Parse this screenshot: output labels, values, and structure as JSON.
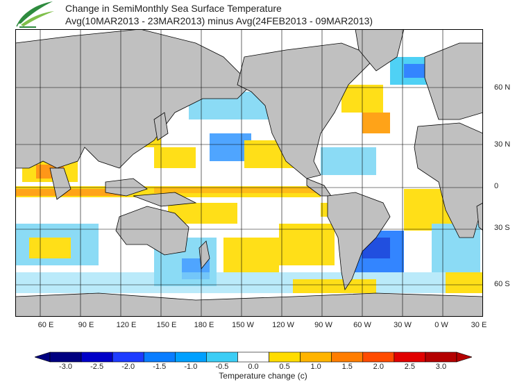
{
  "header": {
    "title_line1": "Change in SemiMonthly Sea Surface Temperature",
    "title_line2": "Avg(10MAR2013 - 23MAR2013) minus Avg(24FEB2013 - 09MAR2013)"
  },
  "logo": {
    "icon": "leaf-logo-icon",
    "colors": [
      "#2e8b3e",
      "#7fbf4a"
    ]
  },
  "map": {
    "land_color": "#c0c0c0",
    "ocean_color": "#ffffff",
    "lon_labels": [
      "60 E",
      "90 E",
      "120 E",
      "150 E",
      "180 E",
      "150 W",
      "120 W",
      "90 W",
      "60 W",
      "30 W",
      "0 W",
      "30 E"
    ],
    "lat_labels": [
      "60 N",
      "30 N",
      "0",
      "30 S",
      "60 S"
    ]
  },
  "colorbar": {
    "title": "Temperature change  (c)",
    "tick_labels": [
      "-3.0",
      "-2.5",
      "-2.0",
      "-1.5",
      "-1.0",
      "-0.5",
      "0.0",
      "0.5",
      "1.0",
      "1.5",
      "2.0",
      "2.5",
      "3.0"
    ],
    "colors": [
      "#000080",
      "#0000c8",
      "#1e3cff",
      "#0a7dff",
      "#00a0ff",
      "#3ccdf5",
      "#ffffff",
      "#ffdc00",
      "#ffb400",
      "#ff7d00",
      "#ff4b00",
      "#e10000",
      "#b40000"
    ]
  }
}
